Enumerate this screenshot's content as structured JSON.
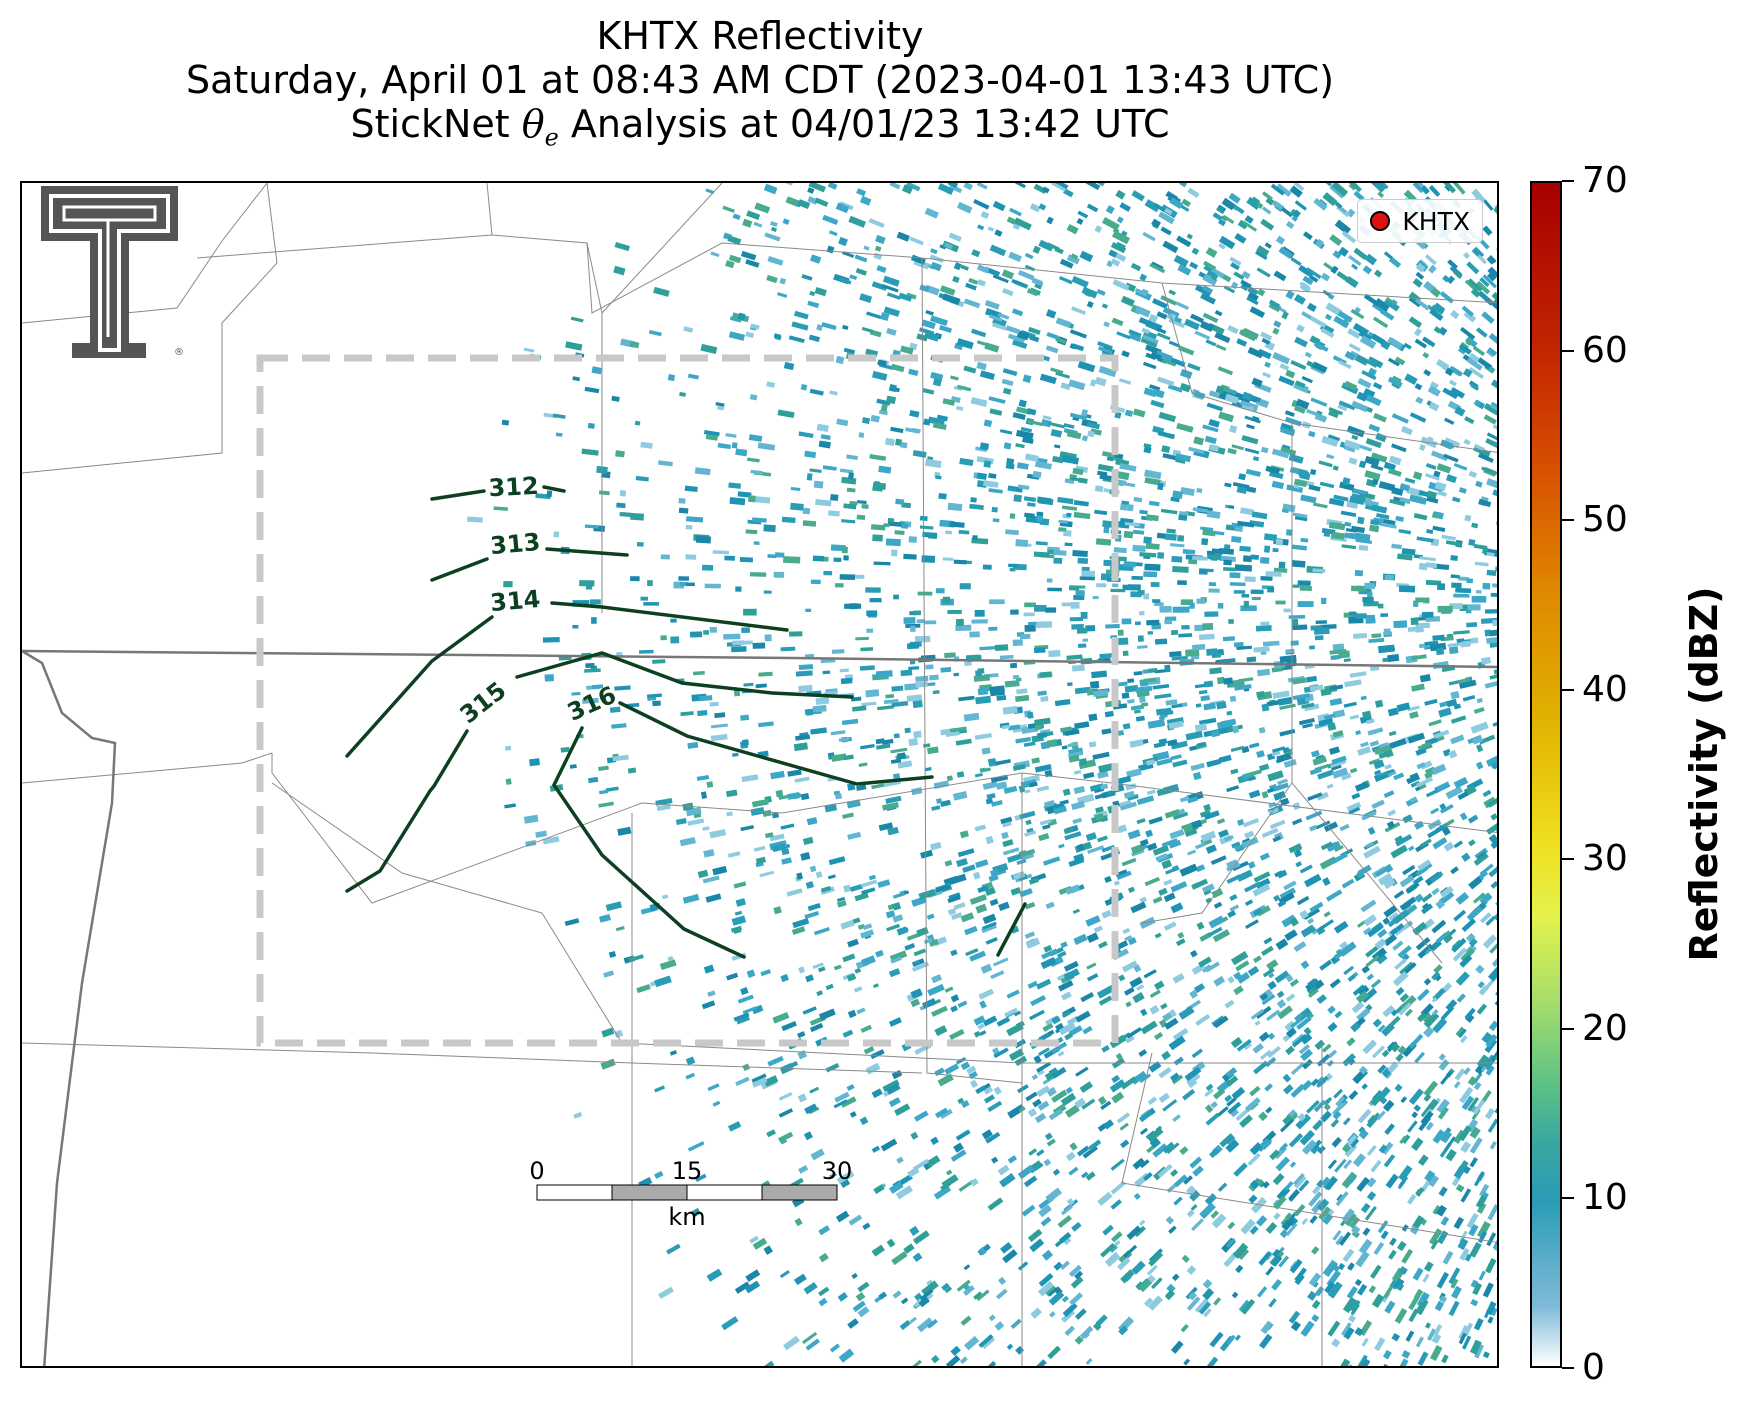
{
  "title": {
    "line1": "KHTX Reflectivity",
    "line2": "Saturday, April 01 at 08:43 AM CDT (2023-04-01 13:43 UTC)",
    "line3_prefix": "StickNet ",
    "line3_symbol": "θ",
    "line3_subscript": "e",
    "line3_suffix": " Analysis at 04/01/23 13:42 UTC"
  },
  "legend": {
    "label": "KHTX",
    "marker_color": "#e01010"
  },
  "colorbar": {
    "title": "Reflectivity (dBZ)",
    "ticks": [
      "0",
      "10",
      "20",
      "30",
      "40",
      "50",
      "60",
      "70"
    ],
    "min": 0,
    "max": 70,
    "colors": [
      "#ffffff",
      "#2a9cb6",
      "#5ec384",
      "#e4f24c",
      "#e0b000",
      "#d85400",
      "#a60000"
    ]
  },
  "contours": {
    "color": "#0d4020",
    "labels": [
      "312",
      "313",
      "314",
      "315",
      "316"
    ]
  },
  "scale_bar": {
    "ticks": [
      "0",
      "15",
      "30"
    ],
    "unit": "km"
  },
  "logo": {
    "name": "Texas Tech Double T",
    "mark": "®",
    "color": "#555555"
  },
  "analysis_box": {
    "style": "dashed",
    "color": "#c8c8c8"
  }
}
